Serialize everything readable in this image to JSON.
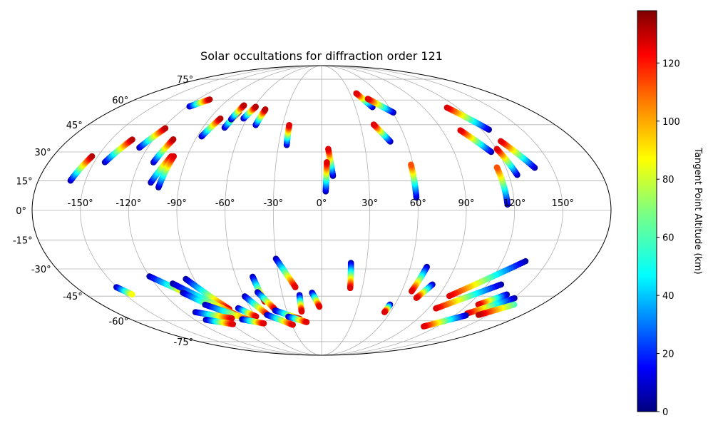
{
  "chart_data": {
    "type": "scatter",
    "projection": "mollweide",
    "title": "Solar occultations for diffraction order 121",
    "colorbar": {
      "label": "Tangent Point Altitude (km)",
      "min": 0,
      "max": 138,
      "ticks": [
        0,
        20,
        40,
        60,
        80,
        100,
        120
      ],
      "colormap": [
        "#00007f",
        "#0000ff",
        "#007fff",
        "#00ffff",
        "#7fff7f",
        "#ffff00",
        "#ff7f00",
        "#ff0000",
        "#7f0000"
      ]
    },
    "lon_ticks": [
      -150,
      -120,
      -90,
      -60,
      -30,
      0,
      30,
      60,
      90,
      120,
      150
    ],
    "lon_tick_labels": [
      "-150°",
      "-120°",
      "-90°",
      "-60°",
      "-30°",
      "0°",
      "30°",
      "60°",
      "90°",
      "120°",
      "150°"
    ],
    "lat_ticks": [
      75,
      60,
      45,
      30,
      15,
      0,
      -15,
      -30,
      -45,
      -60,
      -75
    ],
    "lat_tick_labels": [
      "75°",
      "60°",
      "45°",
      "30°",
      "15°",
      "0°",
      "-15°",
      "-30°",
      "-45°",
      "-60°",
      "-75°"
    ],
    "tracks": [
      {
        "lon": [
          -159.5,
          -153.9
        ],
        "lat": [
          15.1,
          27.7
        ],
        "alt": [
          5,
          130
        ]
      },
      {
        "lon": [
          -142.9,
          -135.0
        ],
        "lat": [
          24.6,
          36.7
        ],
        "alt": [
          5,
          130
        ]
      },
      {
        "lon": [
          -125.7,
          -118.0
        ],
        "lat": [
          32.3,
          43.0
        ],
        "alt": [
          5,
          130
        ]
      },
      {
        "lon": [
          -118.0,
          -108.3
        ],
        "lat": [
          55.9,
          60.4
        ],
        "alt": [
          5,
          130
        ]
      },
      {
        "lon": [
          -110.8,
          -105.8
        ],
        "lat": [
          24.5,
          36.8
        ],
        "alt": [
          5,
          130
        ]
      },
      {
        "lon": [
          -108.2,
          -100.7
        ],
        "lat": [
          14.1,
          27.7
        ],
        "alt": [
          5,
          125
        ]
      },
      {
        "lon": [
          -102.7,
          -99.1
        ],
        "lat": [
          11.7,
          27.7
        ],
        "alt": [
          5,
          125
        ]
      },
      {
        "lon": [
          -86.8,
          -81.4
        ],
        "lat": [
          38.4,
          48.6
        ],
        "alt": [
          5,
          130
        ]
      },
      {
        "lon": [
          -73.5,
          -70.2
        ],
        "lat": [
          43.3,
          52.7
        ],
        "alt": [
          5,
          130
        ]
      },
      {
        "lon": [
          -72.3,
          -70.1
        ],
        "lat": [
          48.1,
          56.6
        ],
        "alt": [
          5,
          130
        ]
      },
      {
        "lon": [
          -62.8,
          -58.6
        ],
        "lat": [
          48.6,
          55.7
        ],
        "alt": [
          5,
          130
        ]
      },
      {
        "lon": [
          -50.7,
          -48.8
        ],
        "lat": [
          44.8,
          54.1
        ],
        "alt": [
          5,
          130
        ]
      },
      {
        "lon": [
          -24.3,
          -24.9
        ],
        "lat": [
          33.7,
          44.8
        ],
        "alt": [
          5,
          125
        ]
      },
      {
        "lon": [
          7.3,
          4.6
        ],
        "lat": [
          17.5,
          31.6
        ],
        "alt": [
          5,
          125
        ]
      },
      {
        "lon": [
          2.6,
          3.5
        ],
        "lat": [
          9.6,
          24.6
        ],
        "alt": [
          5,
          125
        ]
      },
      {
        "lon": [
          45.2,
          36.7
        ],
        "lat": [
          55.5,
          64.5
        ],
        "alt": [
          5,
          125
        ]
      },
      {
        "lon": [
          60.6,
          45.2
        ],
        "lat": [
          52.2,
          60.8
        ],
        "alt": [
          5,
          125
        ]
      },
      {
        "lon": [
          48.6,
          40.3
        ],
        "lat": [
          35.6,
          45.1
        ],
        "alt": [
          5,
          125
        ]
      },
      {
        "lon": [
          59.2,
          58.6
        ],
        "lat": [
          6.5,
          23.3
        ],
        "alt": [
          5,
          110
        ]
      },
      {
        "lon": [
          125.4,
          110.8
        ],
        "lat": [
          42.2,
          55.2
        ],
        "alt": [
          5,
          125
        ]
      },
      {
        "lon": [
          115.3,
          103.6
        ],
        "lat": [
          30.0,
          41.8
        ],
        "alt": [
          5,
          125
        ]
      },
      {
        "lon": [
          138.7,
          126.9
        ],
        "lat": [
          21.7,
          35.8
        ],
        "alt": [
          5,
          125
        ]
      },
      {
        "lon": [
          125.5,
          120.4
        ],
        "lat": [
          18.0,
          31.6
        ],
        "alt": [
          5,
          125
        ]
      },
      {
        "lon": [
          115.7,
          114.2
        ],
        "lat": [
          3.0,
          21.9
        ],
        "alt": [
          5,
          110
        ]
      },
      {
        "lon": [
          -150.4,
          -144.6
        ],
        "lat": [
          -39.9,
          -44.0
        ],
        "alt": [
          5,
          85
        ]
      },
      {
        "lon": [
          -120.2,
          -97.3
        ],
        "lat": [
          -34.0,
          -46.0
        ],
        "alt": [
          5,
          125
        ]
      },
      {
        "lon": [
          -95.8,
          -78.4
        ],
        "lat": [
          -35.4,
          -52.6
        ],
        "alt": [
          5,
          125
        ]
      },
      {
        "lon": [
          -107.2,
          -74.5
        ],
        "lat": [
          -37.9,
          -57.3
        ],
        "alt": [
          5,
          125
        ]
      },
      {
        "lon": [
          -104.8,
          -84.2
        ],
        "lat": [
          -43.0,
          -55.0
        ],
        "alt": [
          5,
          125
        ]
      },
      {
        "lon": [
          -95.4,
          -66.2
        ],
        "lat": [
          -50.0,
          -60.3
        ],
        "alt": [
          5,
          125
        ]
      },
      {
        "lon": [
          -110.2,
          -83.7
        ],
        "lat": [
          -54.5,
          -58.4
        ],
        "alt": [
          5,
          125
        ]
      },
      {
        "lon": [
          -109.7,
          -89.0
        ],
        "lat": [
          -59.3,
          -62.2
        ],
        "alt": [
          5,
          125
        ]
      },
      {
        "lon": [
          -70.3,
          -59.8
        ],
        "lat": [
          -52.1,
          -57.2
        ],
        "alt": [
          5,
          125
        ]
      },
      {
        "lon": [
          -74.9,
          -57.4
        ],
        "lat": [
          -59.0,
          -61.7
        ],
        "alt": [
          5,
          125
        ]
      },
      {
        "lon": [
          -59.3,
          -48.2
        ],
        "lat": [
          -45.1,
          -56.2
        ],
        "alt": [
          5,
          125
        ]
      },
      {
        "lon": [
          -48.2,
          -45.4
        ],
        "lat": [
          -34.2,
          -48.1
        ],
        "alt": [
          5,
          125
        ]
      },
      {
        "lon": [
          -48.2,
          -39.8
        ],
        "lat": [
          -42.7,
          -52.6
        ],
        "alt": [
          5,
          125
        ]
      },
      {
        "lon": [
          -48.9,
          -29.1
        ],
        "lat": [
          -56.2,
          -62.6
        ],
        "alt": [
          5,
          125
        ]
      },
      {
        "lon": [
          -30.1,
          -19.2
        ],
        "lat": [
          -24.6,
          -39.9
        ],
        "alt": [
          5,
          125
        ]
      },
      {
        "lon": [
          -39.9,
          -20.3
        ],
        "lat": [
          -53.5,
          -58.8
        ],
        "alt": [
          5,
          125
        ]
      },
      {
        "lon": [
          -30.4,
          -14.6
        ],
        "lat": [
          -57.3,
          -60.8
        ],
        "alt": [
          5,
          125
        ]
      },
      {
        "lon": [
          -16.9,
          -17.3
        ],
        "lat": [
          -44.4,
          -54.1
        ],
        "alt": [
          5,
          125
        ]
      },
      {
        "lon": [
          -7.2,
          -1.8
        ],
        "lat": [
          -43.0,
          -51.2
        ],
        "alt": [
          5,
          125
        ]
      },
      {
        "lon": [
          19.6,
          21.1
        ],
        "lat": [
          -26.8,
          -40.4
        ],
        "alt": [
          5,
          125
        ]
      },
      {
        "lon": [
          56.0,
          55.0
        ],
        "lat": [
          -49.9,
          -54.5
        ],
        "alt": [
          5,
          125
        ]
      },
      {
        "lon": [
          71.1,
          67.5
        ],
        "lat": [
          -28.9,
          -42.2
        ],
        "alt": [
          5,
          125
        ]
      },
      {
        "lon": [
          80.2,
          74.0
        ],
        "lat": [
          -38.4,
          -46.0
        ],
        "alt": [
          5,
          125
        ]
      },
      {
        "lon": [
          135.4,
          98.5
        ],
        "lat": [
          -25.9,
          -44.9
        ],
        "alt": [
          5,
          125
        ]
      },
      {
        "lon": [
          129.9,
          96.6
        ],
        "lat": [
          -38.4,
          -52.2
        ],
        "alt": [
          5,
          125
        ]
      },
      {
        "lon": [
          141.4,
          128.3
        ],
        "lat": [
          -44.0,
          -49.9
        ],
        "alt": [
          5,
          125
        ]
      },
      {
        "lon": [
          150.8,
          128.9
        ],
        "lat": [
          -46.2,
          -55.3
        ],
        "alt": [
          5,
          125
        ]
      },
      {
        "lon": [
          157.5,
          141.0
        ],
        "lat": [
          -49.9,
          -56.2
        ],
        "alt": [
          60,
          130
        ]
      },
      {
        "lon": [
          130.2,
          106.1
        ],
        "lat": [
          -56.5,
          -63.7
        ],
        "alt": [
          5,
          125
        ]
      }
    ]
  }
}
